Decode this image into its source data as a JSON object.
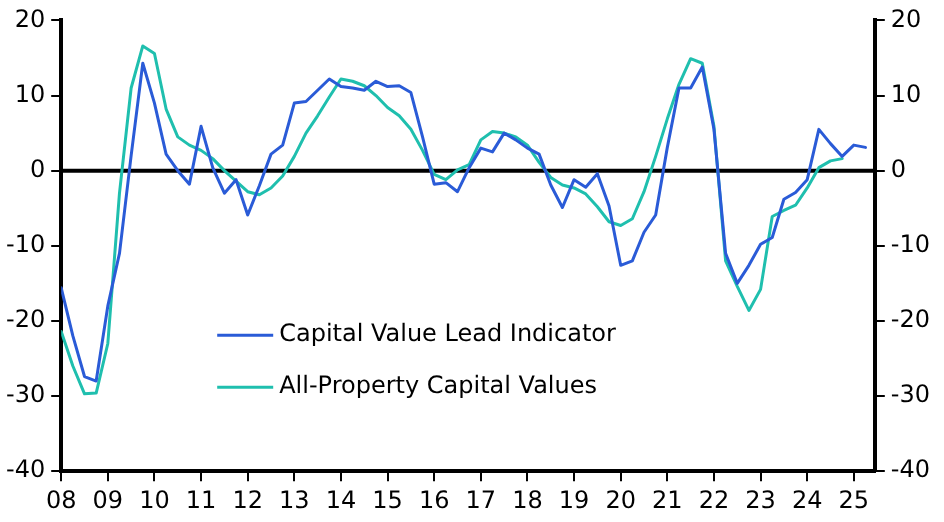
{
  "chart_data": {
    "type": "line",
    "xlim": [
      2008,
      2025.45
    ],
    "xticks": [
      {
        "value": 2008,
        "label": "08"
      },
      {
        "value": 2009,
        "label": "09"
      },
      {
        "value": 2010,
        "label": "10"
      },
      {
        "value": 2011,
        "label": "11"
      },
      {
        "value": 2012,
        "label": "12"
      },
      {
        "value": 2013,
        "label": "13"
      },
      {
        "value": 2014,
        "label": "14"
      },
      {
        "value": 2015,
        "label": "15"
      },
      {
        "value": 2016,
        "label": "16"
      },
      {
        "value": 2017,
        "label": "17"
      },
      {
        "value": 2018,
        "label": "18"
      },
      {
        "value": 2019,
        "label": "19"
      },
      {
        "value": 2020,
        "label": "20"
      },
      {
        "value": 2021,
        "label": "21"
      },
      {
        "value": 2022,
        "label": "22"
      },
      {
        "value": 2023,
        "label": "23"
      },
      {
        "value": 2024,
        "label": "24"
      },
      {
        "value": 2025,
        "label": "25"
      }
    ],
    "ylim": [
      -40,
      20
    ],
    "yticks": [
      -40,
      -30,
      -20,
      -10,
      0,
      10,
      20
    ],
    "y2lim": [
      -40,
      20
    ],
    "y2ticks": [
      -40,
      -30,
      -20,
      -10,
      0,
      10,
      20
    ],
    "grid": false,
    "legend": "bottom left",
    "marker": "none",
    "line_style": "solid",
    "ref_lines": [
      {
        "axis": "y",
        "value": 0,
        "color": "#000000"
      }
    ],
    "series": [
      {
        "name": "Capital Value Lead Indicator",
        "color": "#2a5bd7",
        "x": [
          2008,
          2008.25,
          2008.5,
          2008.75,
          2009,
          2009.25,
          2009.5,
          2009.75,
          2010,
          2010.25,
          2010.5,
          2010.75,
          2011,
          2011.25,
          2011.5,
          2011.75,
          2012,
          2012.25,
          2012.5,
          2012.75,
          2013,
          2013.25,
          2013.5,
          2013.75,
          2014,
          2014.25,
          2014.5,
          2014.75,
          2015,
          2015.25,
          2015.5,
          2015.75,
          2016,
          2016.25,
          2016.5,
          2016.75,
          2017,
          2017.25,
          2017.5,
          2017.75,
          2018,
          2018.25,
          2018.5,
          2018.75,
          2019,
          2019.25,
          2019.5,
          2019.75,
          2020,
          2020.25,
          2020.5,
          2020.75,
          2021,
          2021.25,
          2021.5,
          2021.75,
          2022,
          2022.25,
          2022.5,
          2022.75,
          2023,
          2023.25,
          2023.5,
          2023.75,
          2024,
          2024.25,
          2024.5,
          2024.75,
          2025,
          2025.25
        ],
        "values": [
          -15.6,
          -22,
          -27.4,
          -28,
          -18,
          -11,
          2,
          14.3,
          9,
          2.2,
          0,
          -1.8,
          5.9,
          0.4,
          -3,
          -1.2,
          -5.9,
          -2,
          2.2,
          3.4,
          9,
          9.2,
          10.7,
          12.2,
          11.2,
          11,
          10.7,
          11.9,
          11.2,
          11.3,
          10.4,
          4.5,
          -1.8,
          -1.6,
          -2.8,
          0.4,
          3,
          2.5,
          5,
          4.1,
          3,
          2.2,
          -1.9,
          -4.9,
          -1.2,
          -2.2,
          -0.4,
          -4.7,
          -12.6,
          -12,
          -8.2,
          -5.9,
          3.1,
          11,
          11,
          13.8,
          5.5,
          -11,
          -15,
          -12.6,
          -9.8,
          -8.9,
          -3.8,
          -2.9,
          -1.2,
          5.5,
          3.6,
          1.9,
          3.4,
          3.1
        ]
      },
      {
        "name": "All-Property Capital Values",
        "color": "#1fbfae",
        "x": [
          2008,
          2008.25,
          2008.5,
          2008.75,
          2009,
          2009.25,
          2009.5,
          2009.75,
          2010,
          2010.25,
          2010.5,
          2010.75,
          2011,
          2011.25,
          2011.5,
          2011.75,
          2012,
          2012.25,
          2012.5,
          2012.75,
          2013,
          2013.25,
          2013.5,
          2013.75,
          2014,
          2014.25,
          2014.5,
          2014.75,
          2015,
          2015.25,
          2015.5,
          2015.75,
          2016,
          2016.25,
          2016.5,
          2016.75,
          2017,
          2017.25,
          2017.5,
          2017.75,
          2018,
          2018.25,
          2018.5,
          2018.75,
          2019,
          2019.25,
          2019.5,
          2019.75,
          2020,
          2020.25,
          2020.5,
          2020.75,
          2021,
          2021.25,
          2021.5,
          2021.75,
          2022,
          2022.25,
          2022.5,
          2022.75,
          2023,
          2023.25,
          2023.5,
          2023.75,
          2024,
          2024.25,
          2024.5,
          2024.75
        ],
        "values": [
          -21.4,
          -26,
          -29.7,
          -29.6,
          -23,
          -3,
          11,
          16.6,
          15.6,
          8.2,
          4.5,
          3.4,
          2.7,
          1.6,
          0,
          -1.4,
          -2.8,
          -3.2,
          -2.3,
          -0.7,
          1.9,
          5,
          7.3,
          9.8,
          12.2,
          11.9,
          11.3,
          10,
          8.4,
          7.3,
          5.5,
          2.7,
          -0.5,
          -1.2,
          0.1,
          0.8,
          4.1,
          5.2,
          5,
          4.5,
          3.4,
          1.1,
          -0.9,
          -1.9,
          -2.3,
          -3.1,
          -4.8,
          -6.8,
          -7.3,
          -6.4,
          -2.8,
          1.9,
          6.9,
          11.5,
          14.9,
          14.3,
          5.9,
          -12,
          -15.4,
          -18.6,
          -15.8,
          -6.1,
          -5.3,
          -4.6,
          -2.3,
          0.4,
          1.3,
          1.6
        ]
      }
    ]
  }
}
